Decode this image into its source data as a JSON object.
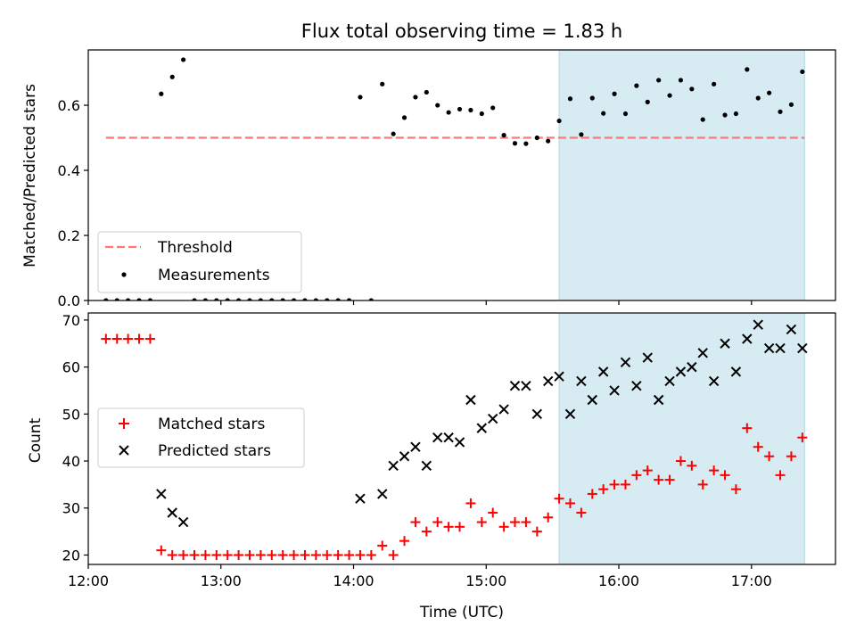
{
  "chart_data": [
    {
      "type": "scatter",
      "title": "Flux total observing time = 1.83 h",
      "ylabel": "Matched/Predicted stars",
      "xlabel": "",
      "xlim": [
        "12:00",
        "17:38"
      ],
      "ylim": [
        0,
        0.77
      ],
      "yticks": [
        {
          "value": 0.0,
          "label": "0.0"
        },
        {
          "value": 0.2,
          "label": "0.2"
        },
        {
          "value": 0.4,
          "label": "0.4"
        },
        {
          "value": 0.6,
          "label": "0.6"
        }
      ],
      "shaded_region": {
        "x0": "15:33",
        "x1": "17:24",
        "color": "#add8e6"
      },
      "threshold": {
        "name": "Threshold",
        "value": 0.5,
        "x0": "12:08",
        "x1": "17:24",
        "color": "#ff7777",
        "style": "dashed"
      },
      "measurements": {
        "name": "Measurements",
        "color": "#000000",
        "points": [
          [
            "12:08",
            0
          ],
          [
            "12:13",
            0
          ],
          [
            "12:18",
            0
          ],
          [
            "12:23",
            0
          ],
          [
            "12:28",
            0
          ],
          [
            "12:33",
            0.635
          ],
          [
            "12:38",
            0.687
          ],
          [
            "12:43",
            0.74
          ],
          [
            "12:48",
            0
          ],
          [
            "12:53",
            0
          ],
          [
            "12:58",
            0
          ],
          [
            "13:03",
            0
          ],
          [
            "13:08",
            0
          ],
          [
            "13:13",
            0
          ],
          [
            "13:18",
            0
          ],
          [
            "13:23",
            0
          ],
          [
            "13:28",
            0
          ],
          [
            "13:33",
            0
          ],
          [
            "13:38",
            0
          ],
          [
            "13:43",
            0
          ],
          [
            "13:48",
            0
          ],
          [
            "13:53",
            0
          ],
          [
            "13:58",
            0
          ],
          [
            "14:03",
            0.625
          ],
          [
            "14:08",
            0
          ],
          [
            "14:13",
            0.665
          ],
          [
            "14:18",
            0.512
          ],
          [
            "14:23",
            0.562
          ],
          [
            "14:28",
            0.625
          ],
          [
            "14:33",
            0.64
          ],
          [
            "14:38",
            0.6
          ],
          [
            "14:43",
            0.578
          ],
          [
            "14:48",
            0.588
          ],
          [
            "14:53",
            0.585
          ],
          [
            "14:58",
            0.574
          ],
          [
            "15:03",
            0.592
          ],
          [
            "15:08",
            0.508
          ],
          [
            "15:13",
            0.483
          ],
          [
            "15:18",
            0.482
          ],
          [
            "15:23",
            0.5
          ],
          [
            "15:28",
            0.49
          ],
          [
            "15:33",
            0.552
          ],
          [
            "15:38",
            0.62
          ],
          [
            "15:43",
            0.51
          ],
          [
            "15:48",
            0.622
          ],
          [
            "15:53",
            0.575
          ],
          [
            "15:58",
            0.635
          ],
          [
            "16:03",
            0.574
          ],
          [
            "16:08",
            0.66
          ],
          [
            "16:13",
            0.61
          ],
          [
            "16:18",
            0.677
          ],
          [
            "16:23",
            0.63
          ],
          [
            "16:28",
            0.677
          ],
          [
            "16:33",
            0.65
          ],
          [
            "16:38",
            0.556
          ],
          [
            "16:43",
            0.665
          ],
          [
            "16:48",
            0.57
          ],
          [
            "16:53",
            0.574
          ],
          [
            "16:58",
            0.71
          ],
          [
            "17:03",
            0.622
          ],
          [
            "17:08",
            0.638
          ],
          [
            "17:13",
            0.58
          ],
          [
            "17:18",
            0.602
          ],
          [
            "17:23",
            0.703
          ]
        ]
      },
      "legend": {
        "placement": "lower-left",
        "entries": [
          "Threshold",
          "Measurements"
        ]
      }
    },
    {
      "type": "scatter",
      "title": "",
      "ylabel": "Count",
      "xlabel": "Time (UTC)",
      "xlim": [
        "12:00",
        "17:38"
      ],
      "ylim": [
        18,
        71.5
      ],
      "yticks": [
        {
          "value": 20,
          "label": "20"
        },
        {
          "value": 30,
          "label": "30"
        },
        {
          "value": 40,
          "label": "40"
        },
        {
          "value": 50,
          "label": "50"
        },
        {
          "value": 60,
          "label": "60"
        },
        {
          "value": 70,
          "label": "70"
        }
      ],
      "xticks": [
        {
          "value": "12:00",
          "label": "12:00"
        },
        {
          "value": "13:00",
          "label": "13:00"
        },
        {
          "value": "14:00",
          "label": "14:00"
        },
        {
          "value": "15:00",
          "label": "15:00"
        },
        {
          "value": "16:00",
          "label": "16:00"
        },
        {
          "value": "17:00",
          "label": "17:00"
        }
      ],
      "shaded_region": {
        "x0": "15:33",
        "x1": "17:24",
        "color": "#add8e6"
      },
      "series": [
        {
          "name": "Matched stars",
          "marker": "plus",
          "color": "#ff0000",
          "points": [
            [
              "12:08",
              66
            ],
            [
              "12:13",
              66
            ],
            [
              "12:18",
              66
            ],
            [
              "12:23",
              66
            ],
            [
              "12:28",
              66
            ],
            [
              "12:33",
              21
            ],
            [
              "12:38",
              20
            ],
            [
              "12:43",
              20
            ],
            [
              "12:48",
              20
            ],
            [
              "12:53",
              20
            ],
            [
              "12:58",
              20
            ],
            [
              "13:03",
              20
            ],
            [
              "13:08",
              20
            ],
            [
              "13:13",
              20
            ],
            [
              "13:18",
              20
            ],
            [
              "13:23",
              20
            ],
            [
              "13:28",
              20
            ],
            [
              "13:33",
              20
            ],
            [
              "13:38",
              20
            ],
            [
              "13:43",
              20
            ],
            [
              "13:48",
              20
            ],
            [
              "13:53",
              20
            ],
            [
              "13:58",
              20
            ],
            [
              "14:03",
              20
            ],
            [
              "14:08",
              20
            ],
            [
              "14:13",
              22
            ],
            [
              "14:18",
              20
            ],
            [
              "14:23",
              23
            ],
            [
              "14:28",
              27
            ],
            [
              "14:33",
              25
            ],
            [
              "14:38",
              27
            ],
            [
              "14:43",
              26
            ],
            [
              "14:48",
              26
            ],
            [
              "14:53",
              31
            ],
            [
              "14:58",
              27
            ],
            [
              "15:03",
              29
            ],
            [
              "15:08",
              26
            ],
            [
              "15:13",
              27
            ],
            [
              "15:18",
              27
            ],
            [
              "15:23",
              25
            ],
            [
              "15:28",
              28
            ],
            [
              "15:33",
              32
            ],
            [
              "15:38",
              31
            ],
            [
              "15:43",
              29
            ],
            [
              "15:48",
              33
            ],
            [
              "15:53",
              34
            ],
            [
              "15:58",
              35
            ],
            [
              "16:03",
              35
            ],
            [
              "16:08",
              37
            ],
            [
              "16:13",
              38
            ],
            [
              "16:18",
              36
            ],
            [
              "16:23",
              36
            ],
            [
              "16:28",
              40
            ],
            [
              "16:33",
              39
            ],
            [
              "16:38",
              35
            ],
            [
              "16:43",
              38
            ],
            [
              "16:48",
              37
            ],
            [
              "16:53",
              34
            ],
            [
              "16:58",
              47
            ],
            [
              "17:03",
              43
            ],
            [
              "17:08",
              41
            ],
            [
              "17:13",
              37
            ],
            [
              "17:18",
              41
            ],
            [
              "17:23",
              45
            ]
          ]
        },
        {
          "name": "Predicted stars",
          "marker": "x",
          "color": "#000000",
          "points": [
            [
              "12:33",
              33
            ],
            [
              "12:38",
              29
            ],
            [
              "12:43",
              27
            ],
            [
              "14:03",
              32
            ],
            [
              "14:13",
              33
            ],
            [
              "14:18",
              39
            ],
            [
              "14:23",
              41
            ],
            [
              "14:28",
              43
            ],
            [
              "14:33",
              39
            ],
            [
              "14:38",
              45
            ],
            [
              "14:43",
              45
            ],
            [
              "14:48",
              44
            ],
            [
              "14:53",
              53
            ],
            [
              "14:58",
              47
            ],
            [
              "15:03",
              49
            ],
            [
              "15:08",
              51
            ],
            [
              "15:13",
              56
            ],
            [
              "15:18",
              56
            ],
            [
              "15:23",
              50
            ],
            [
              "15:28",
              57
            ],
            [
              "15:33",
              58
            ],
            [
              "15:38",
              50
            ],
            [
              "15:43",
              57
            ],
            [
              "15:48",
              53
            ],
            [
              "15:53",
              59
            ],
            [
              "15:58",
              55
            ],
            [
              "16:03",
              61
            ],
            [
              "16:08",
              56
            ],
            [
              "16:13",
              62
            ],
            [
              "16:18",
              53
            ],
            [
              "16:23",
              57
            ],
            [
              "16:28",
              59
            ],
            [
              "16:33",
              60
            ],
            [
              "16:38",
              63
            ],
            [
              "16:43",
              57
            ],
            [
              "16:48",
              65
            ],
            [
              "16:53",
              59
            ],
            [
              "16:58",
              66
            ],
            [
              "17:03",
              69
            ],
            [
              "17:08",
              64
            ],
            [
              "17:13",
              64
            ],
            [
              "17:18",
              68
            ],
            [
              "17:23",
              64
            ]
          ]
        }
      ],
      "legend": {
        "placement": "center-left",
        "entries": [
          "Matched stars",
          "Predicted stars"
        ]
      }
    }
  ]
}
